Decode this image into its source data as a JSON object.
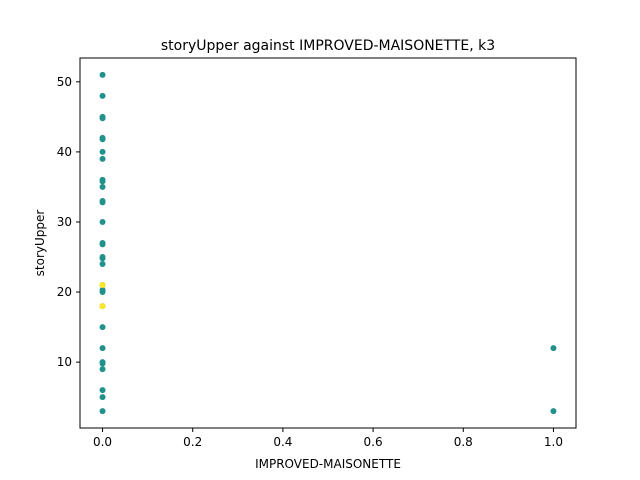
{
  "chart_data": {
    "type": "scatter",
    "title": "storyUpper against IMPROVED-MAISONETTE, k3",
    "xlabel": "IMPROVED-MAISONETTE",
    "ylabel": "storyUpper",
    "xlim": [
      -0.05,
      1.05
    ],
    "ylim": [
      0.6,
      53.4
    ],
    "xticks": [
      0.0,
      0.2,
      0.4,
      0.6,
      0.8,
      1.0
    ],
    "xtick_labels": [
      "0.0",
      "0.2",
      "0.4",
      "0.6",
      "0.8",
      "1.0"
    ],
    "yticks": [
      10,
      20,
      30,
      40,
      50
    ],
    "ytick_labels": [
      "10",
      "20",
      "30",
      "40",
      "50"
    ],
    "grid": false,
    "legend": "none",
    "colors": {
      "cluster_teal": "#21918c",
      "cluster_yellow": "#fde725"
    },
    "series": [
      {
        "color": "#21918c",
        "x": [
          0,
          0,
          0,
          0,
          0,
          0,
          0,
          0,
          0,
          0,
          0,
          0,
          0,
          0,
          0,
          0,
          0,
          0,
          0,
          0,
          0,
          0,
          0,
          0,
          0,
          0,
          0,
          0,
          0,
          0,
          0,
          1,
          1
        ],
        "y": [
          51,
          48,
          45,
          42,
          40,
          39,
          36,
          35,
          33,
          30,
          27,
          25,
          24,
          21,
          20,
          18,
          15,
          12,
          10,
          9,
          6,
          5,
          3,
          44.8,
          41.8,
          35.8,
          32.8,
          26.8,
          24.8,
          20.3,
          9.8,
          12,
          3
        ]
      },
      {
        "color": "#fde725",
        "x": [
          0,
          0
        ],
        "y": [
          21,
          18
        ]
      }
    ]
  }
}
